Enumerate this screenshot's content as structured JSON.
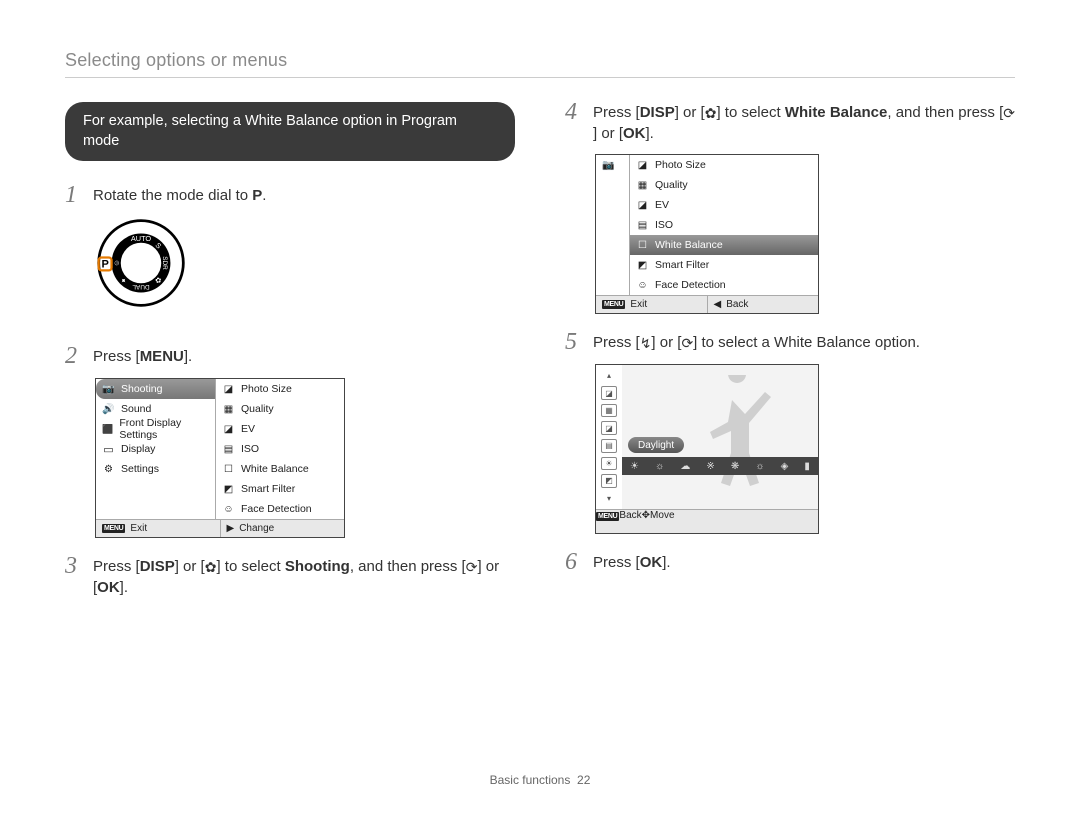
{
  "header": "Selecting options or menus",
  "banner": "For example, selecting a White Balance option in Program mode",
  "steps": {
    "s1": {
      "num": "1",
      "text_a": "Rotate the mode dial to ",
      "key": "P",
      "text_b": "."
    },
    "s2": {
      "num": "2",
      "text_a": "Press [",
      "key": "MENU",
      "text_b": "]."
    },
    "s3": {
      "num": "3",
      "text_a": "Press [",
      "key1": "DISP",
      "text_b": "] or [",
      "icon2": "✿",
      "text_c": "] to select ",
      "bold": "Shooting",
      "text_d": ", and then press [",
      "icon3": "⟳",
      "text_e": "] or [",
      "key2": "OK",
      "text_f": "]."
    },
    "s4": {
      "num": "4",
      "text_a": "Press [",
      "key1": "DISP",
      "text_b": "] or [",
      "icon2": "✿",
      "text_c": "] to select ",
      "bold": "White Balance",
      "text_d": ", and then press [",
      "icon3": "⟳",
      "text_e": "] or [",
      "key2": "OK",
      "text_f": "]."
    },
    "s5": {
      "num": "5",
      "text_a": "Press [",
      "icon1": "↯",
      "text_b": "] or [",
      "icon2": "⟳",
      "text_c": "] to select a White Balance option."
    },
    "s6": {
      "num": "6",
      "text_a": "Press [",
      "key": "OK",
      "text_b": "]."
    }
  },
  "lcd1": {
    "left": [
      {
        "icon": "iconcam",
        "label": "Shooting",
        "selected": true
      },
      {
        "icon": "iconsnd",
        "label": "Sound"
      },
      {
        "icon": "iconfds",
        "label": "Front Display Settings"
      },
      {
        "icon": "icondsp",
        "label": "Display"
      },
      {
        "icon": "iconset",
        "label": "Settings"
      }
    ],
    "right": [
      {
        "icon": "ips",
        "label": "Photo Size"
      },
      {
        "icon": "iql",
        "label": "Quality"
      },
      {
        "icon": "iev",
        "label": "EV"
      },
      {
        "icon": "iiso",
        "label": "ISO"
      },
      {
        "icon": "iwb",
        "label": "White Balance"
      },
      {
        "icon": "isf",
        "label": "Smart Filter"
      },
      {
        "icon": "ifd",
        "label": "Face Detection"
      }
    ],
    "foot_left_label": "Exit",
    "foot_right_label": "Change",
    "foot_right_icon": "▶"
  },
  "lcd2": {
    "right": [
      {
        "icon": "ips",
        "label": "Photo Size"
      },
      {
        "icon": "iql",
        "label": "Quality"
      },
      {
        "icon": "iev",
        "label": "EV"
      },
      {
        "icon": "iiso",
        "label": "ISO"
      },
      {
        "icon": "iwb",
        "label": "White Balance",
        "selected": true
      },
      {
        "icon": "isf",
        "label": "Smart Filter"
      },
      {
        "icon": "ifd",
        "label": "Face Detection"
      }
    ],
    "foot_left_label": "Exit",
    "foot_right_label": "Back",
    "foot_right_icon": "◀"
  },
  "lcd3": {
    "label": "Daylight",
    "strip_icons": [
      "☀",
      "☼",
      "☁",
      "※",
      "❋",
      "☼",
      "◈",
      "▮"
    ],
    "side_icons": [
      "▴",
      "◪",
      "▦",
      "◪",
      "▤",
      "☀",
      "◩",
      "▾"
    ],
    "foot_left_label": "Back",
    "foot_right_label": "Move",
    "foot_right_icon": "✥"
  },
  "footer": {
    "section": "Basic functions",
    "page": "22"
  },
  "colors": {
    "text": "#333333",
    "muted": "#8a8a8a",
    "banner_bg": "#3a3a3a",
    "banner_text": "#ffffff",
    "sel_grad_top": "#999999",
    "sel_grad_bot": "#666666",
    "lcd_border": "#444444",
    "footer_bg": "#e8e8e8"
  }
}
